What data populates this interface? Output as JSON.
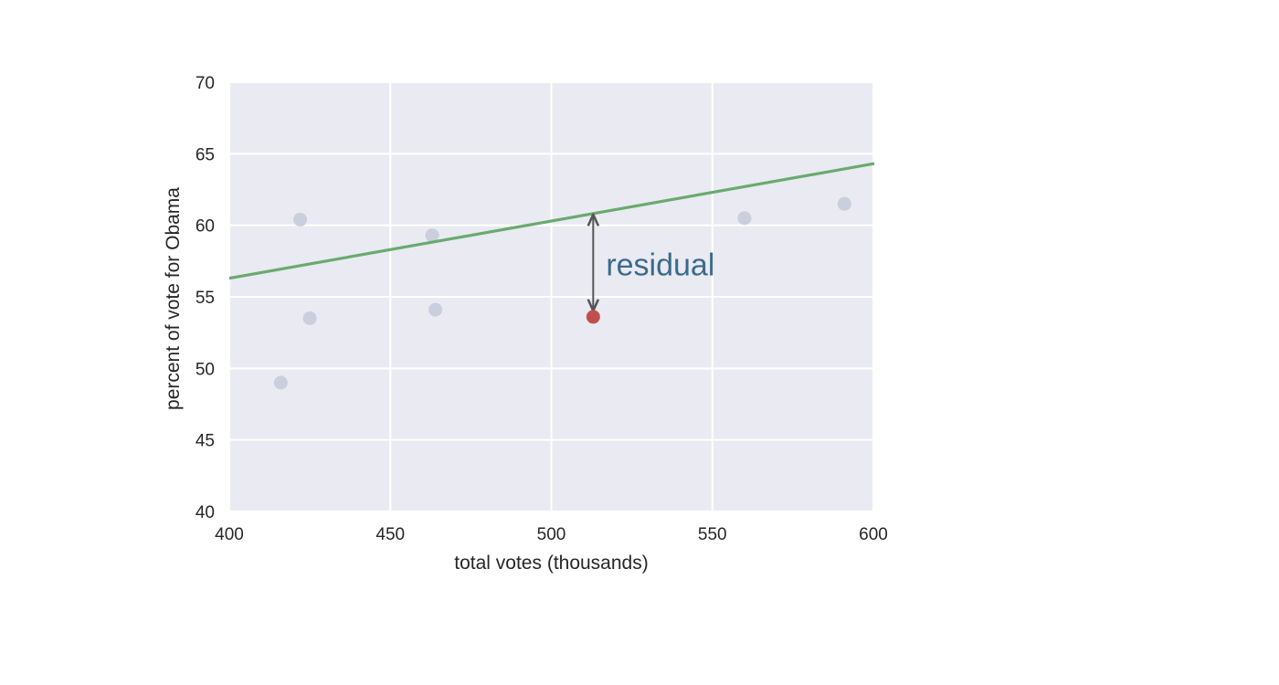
{
  "chart_data": {
    "type": "scatter",
    "xlabel": "total votes (thousands)",
    "ylabel": "percent of vote for Obama",
    "xlim": [
      400,
      600
    ],
    "ylim": [
      40,
      70
    ],
    "xticks": [
      "400",
      "450",
      "500",
      "550",
      "600"
    ],
    "yticks": [
      "40",
      "45",
      "50",
      "55",
      "60",
      "65",
      "70"
    ],
    "grid": true,
    "points": [
      {
        "x": 416,
        "y": 49.0
      },
      {
        "x": 422,
        "y": 60.4
      },
      {
        "x": 425,
        "y": 53.5
      },
      {
        "x": 463,
        "y": 59.3
      },
      {
        "x": 464,
        "y": 54.1
      },
      {
        "x": 513,
        "y": 53.6,
        "highlight": true
      },
      {
        "x": 560,
        "y": 60.5
      },
      {
        "x": 591,
        "y": 61.5
      }
    ],
    "fit_line": {
      "x": [
        400,
        600
      ],
      "y": [
        56.3,
        64.3
      ]
    },
    "annotation": {
      "text": "residual",
      "x": 513,
      "y_top": 60.8,
      "y_bottom": 53.6
    },
    "colors": {
      "background": "#eaeaf2",
      "grid": "#ffffff",
      "point": "#c9cfdd",
      "highlight_point": "#c0504d",
      "fit_line": "#6aaa6e",
      "arrow": "#555555",
      "annotation_text": "#3a6b8a"
    }
  }
}
